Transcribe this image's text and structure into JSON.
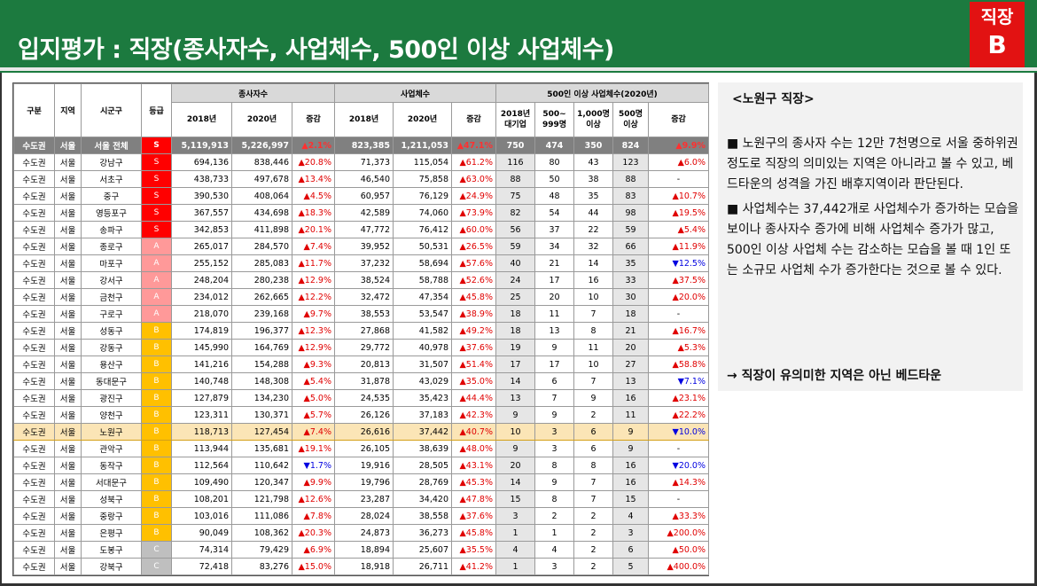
{
  "header": {
    "title": "입지평가 : 직장(종사자수, 사업체수, 500인 이상 사업체수)",
    "badge_line1": "직장",
    "badge_line2": "B"
  },
  "colors": {
    "title_bar": "#1c7a3f",
    "badge": "#e21212",
    "grade_S": "#ff0000",
    "grade_A": "#ff9999",
    "grade_B": "#ffc000",
    "grade_C": "#bfbfbf",
    "increase": "#e00000",
    "decrease": "#0000e0"
  },
  "table": {
    "headers": {
      "category": "구분",
      "region": "지역",
      "district": "시군구",
      "grade": "등급",
      "workers_group": "종사자수",
      "biz_group": "사업체수",
      "large_group": "500인 이상 사업체수(2020년)",
      "y2018": "2018년",
      "y2020": "2020년",
      "change": "증감",
      "large_2018": "2018년 대기업",
      "large_500_999": "500~ 999명",
      "large_1000": "1,000명 이상",
      "large_500": "500명 이상"
    },
    "rows": [
      {
        "cat": "수도권",
        "reg": "서울",
        "dist": "서울 전체",
        "grade": "S",
        "w18": "5,119,913",
        "w20": "5,226,997",
        "wchg": "▲2.1%",
        "b18": "823,385",
        "b20": "1,211,053",
        "bchg": "▲47.1%",
        "l18": "750",
        "l500": "474",
        "l1000": "350",
        "l500p": "824",
        "lchg": "▲9.9%",
        "total": true
      },
      {
        "cat": "수도권",
        "reg": "서울",
        "dist": "강남구",
        "grade": "S",
        "w18": "694,136",
        "w20": "838,446",
        "wchg": "▲20.8%",
        "b18": "71,373",
        "b20": "115,054",
        "bchg": "▲61.2%",
        "l18": "116",
        "l500": "80",
        "l1000": "43",
        "l500p": "123",
        "lchg": "▲6.0%"
      },
      {
        "cat": "수도권",
        "reg": "서울",
        "dist": "서초구",
        "grade": "S",
        "w18": "438,733",
        "w20": "497,678",
        "wchg": "▲13.4%",
        "b18": "46,540",
        "b20": "75,858",
        "bchg": "▲63.0%",
        "l18": "88",
        "l500": "50",
        "l1000": "38",
        "l500p": "88",
        "lchg": "-"
      },
      {
        "cat": "수도권",
        "reg": "서울",
        "dist": "중구",
        "grade": "S",
        "w18": "390,530",
        "w20": "408,064",
        "wchg": "▲4.5%",
        "b18": "60,957",
        "b20": "76,129",
        "bchg": "▲24.9%",
        "l18": "75",
        "l500": "48",
        "l1000": "35",
        "l500p": "83",
        "lchg": "▲10.7%"
      },
      {
        "cat": "수도권",
        "reg": "서울",
        "dist": "영등포구",
        "grade": "S",
        "w18": "367,557",
        "w20": "434,698",
        "wchg": "▲18.3%",
        "b18": "42,589",
        "b20": "74,060",
        "bchg": "▲73.9%",
        "l18": "82",
        "l500": "54",
        "l1000": "44",
        "l500p": "98",
        "lchg": "▲19.5%"
      },
      {
        "cat": "수도권",
        "reg": "서울",
        "dist": "송파구",
        "grade": "S",
        "w18": "342,853",
        "w20": "411,898",
        "wchg": "▲20.1%",
        "b18": "47,772",
        "b20": "76,412",
        "bchg": "▲60.0%",
        "l18": "56",
        "l500": "37",
        "l1000": "22",
        "l500p": "59",
        "lchg": "▲5.4%"
      },
      {
        "cat": "수도권",
        "reg": "서울",
        "dist": "종로구",
        "grade": "A",
        "w18": "265,017",
        "w20": "284,570",
        "wchg": "▲7.4%",
        "b18": "39,952",
        "b20": "50,531",
        "bchg": "▲26.5%",
        "l18": "59",
        "l500": "34",
        "l1000": "32",
        "l500p": "66",
        "lchg": "▲11.9%"
      },
      {
        "cat": "수도권",
        "reg": "서울",
        "dist": "마포구",
        "grade": "A",
        "w18": "255,152",
        "w20": "285,083",
        "wchg": "▲11.7%",
        "b18": "37,232",
        "b20": "58,694",
        "bchg": "▲57.6%",
        "l18": "40",
        "l500": "21",
        "l1000": "14",
        "l500p": "35",
        "lchg": "▼12.5%"
      },
      {
        "cat": "수도권",
        "reg": "서울",
        "dist": "강서구",
        "grade": "A",
        "w18": "248,204",
        "w20": "280,238",
        "wchg": "▲12.9%",
        "b18": "38,524",
        "b20": "58,788",
        "bchg": "▲52.6%",
        "l18": "24",
        "l500": "17",
        "l1000": "16",
        "l500p": "33",
        "lchg": "▲37.5%"
      },
      {
        "cat": "수도권",
        "reg": "서울",
        "dist": "금천구",
        "grade": "A",
        "w18": "234,012",
        "w20": "262,665",
        "wchg": "▲12.2%",
        "b18": "32,472",
        "b20": "47,354",
        "bchg": "▲45.8%",
        "l18": "25",
        "l500": "20",
        "l1000": "10",
        "l500p": "30",
        "lchg": "▲20.0%"
      },
      {
        "cat": "수도권",
        "reg": "서울",
        "dist": "구로구",
        "grade": "A",
        "w18": "218,070",
        "w20": "239,168",
        "wchg": "▲9.7%",
        "b18": "38,553",
        "b20": "53,547",
        "bchg": "▲38.9%",
        "l18": "18",
        "l500": "11",
        "l1000": "7",
        "l500p": "18",
        "lchg": "-"
      },
      {
        "cat": "수도권",
        "reg": "서울",
        "dist": "성동구",
        "grade": "B",
        "w18": "174,819",
        "w20": "196,377",
        "wchg": "▲12.3%",
        "b18": "27,868",
        "b20": "41,582",
        "bchg": "▲49.2%",
        "l18": "18",
        "l500": "13",
        "l1000": "8",
        "l500p": "21",
        "lchg": "▲16.7%"
      },
      {
        "cat": "수도권",
        "reg": "서울",
        "dist": "강동구",
        "grade": "B",
        "w18": "145,990",
        "w20": "164,769",
        "wchg": "▲12.9%",
        "b18": "29,772",
        "b20": "40,978",
        "bchg": "▲37.6%",
        "l18": "19",
        "l500": "9",
        "l1000": "11",
        "l500p": "20",
        "lchg": "▲5.3%"
      },
      {
        "cat": "수도권",
        "reg": "서울",
        "dist": "용산구",
        "grade": "B",
        "w18": "141,216",
        "w20": "154,288",
        "wchg": "▲9.3%",
        "b18": "20,813",
        "b20": "31,507",
        "bchg": "▲51.4%",
        "l18": "17",
        "l500": "17",
        "l1000": "10",
        "l500p": "27",
        "lchg": "▲58.8%"
      },
      {
        "cat": "수도권",
        "reg": "서울",
        "dist": "동대문구",
        "grade": "B",
        "w18": "140,748",
        "w20": "148,308",
        "wchg": "▲5.4%",
        "b18": "31,878",
        "b20": "43,029",
        "bchg": "▲35.0%",
        "l18": "14",
        "l500": "6",
        "l1000": "7",
        "l500p": "13",
        "lchg": "▼7.1%"
      },
      {
        "cat": "수도권",
        "reg": "서울",
        "dist": "광진구",
        "grade": "B",
        "w18": "127,879",
        "w20": "134,230",
        "wchg": "▲5.0%",
        "b18": "24,535",
        "b20": "35,423",
        "bchg": "▲44.4%",
        "l18": "13",
        "l500": "7",
        "l1000": "9",
        "l500p": "16",
        "lchg": "▲23.1%"
      },
      {
        "cat": "수도권",
        "reg": "서울",
        "dist": "양천구",
        "grade": "B",
        "w18": "123,311",
        "w20": "130,371",
        "wchg": "▲5.7%",
        "b18": "26,126",
        "b20": "37,183",
        "bchg": "▲42.3%",
        "l18": "9",
        "l500": "9",
        "l1000": "2",
        "l500p": "11",
        "lchg": "▲22.2%"
      },
      {
        "cat": "수도권",
        "reg": "서울",
        "dist": "노원구",
        "grade": "B",
        "w18": "118,713",
        "w20": "127,454",
        "wchg": "▲7.4%",
        "b18": "26,616",
        "b20": "37,442",
        "bchg": "▲40.7%",
        "l18": "10",
        "l500": "3",
        "l1000": "6",
        "l500p": "9",
        "lchg": "▼10.0%",
        "highlight": true
      },
      {
        "cat": "수도권",
        "reg": "서울",
        "dist": "관악구",
        "grade": "B",
        "w18": "113,944",
        "w20": "135,681",
        "wchg": "▲19.1%",
        "b18": "26,105",
        "b20": "38,639",
        "bchg": "▲48.0%",
        "l18": "9",
        "l500": "3",
        "l1000": "6",
        "l500p": "9",
        "lchg": "-"
      },
      {
        "cat": "수도권",
        "reg": "서울",
        "dist": "동작구",
        "grade": "B",
        "w18": "112,564",
        "w20": "110,642",
        "wchg": "▼1.7%",
        "b18": "19,916",
        "b20": "28,505",
        "bchg": "▲43.1%",
        "l18": "20",
        "l500": "8",
        "l1000": "8",
        "l500p": "16",
        "lchg": "▼20.0%"
      },
      {
        "cat": "수도권",
        "reg": "서울",
        "dist": "서대문구",
        "grade": "B",
        "w18": "109,490",
        "w20": "120,347",
        "wchg": "▲9.9%",
        "b18": "19,796",
        "b20": "28,769",
        "bchg": "▲45.3%",
        "l18": "14",
        "l500": "9",
        "l1000": "7",
        "l500p": "16",
        "lchg": "▲14.3%"
      },
      {
        "cat": "수도권",
        "reg": "서울",
        "dist": "성북구",
        "grade": "B",
        "w18": "108,201",
        "w20": "121,798",
        "wchg": "▲12.6%",
        "b18": "23,287",
        "b20": "34,420",
        "bchg": "▲47.8%",
        "l18": "15",
        "l500": "8",
        "l1000": "7",
        "l500p": "15",
        "lchg": "-"
      },
      {
        "cat": "수도권",
        "reg": "서울",
        "dist": "중랑구",
        "grade": "B",
        "w18": "103,016",
        "w20": "111,086",
        "wchg": "▲7.8%",
        "b18": "28,024",
        "b20": "38,558",
        "bchg": "▲37.6%",
        "l18": "3",
        "l500": "2",
        "l1000": "2",
        "l500p": "4",
        "lchg": "▲33.3%"
      },
      {
        "cat": "수도권",
        "reg": "서울",
        "dist": "은평구",
        "grade": "B",
        "w18": "90,049",
        "w20": "108,362",
        "wchg": "▲20.3%",
        "b18": "24,873",
        "b20": "36,273",
        "bchg": "▲45.8%",
        "l18": "1",
        "l500": "1",
        "l1000": "2",
        "l500p": "3",
        "lchg": "▲200.0%"
      },
      {
        "cat": "수도권",
        "reg": "서울",
        "dist": "도봉구",
        "grade": "C",
        "w18": "74,314",
        "w20": "79,429",
        "wchg": "▲6.9%",
        "b18": "18,894",
        "b20": "25,607",
        "bchg": "▲35.5%",
        "l18": "4",
        "l500": "4",
        "l1000": "2",
        "l500p": "6",
        "lchg": "▲50.0%"
      },
      {
        "cat": "수도권",
        "reg": "서울",
        "dist": "강북구",
        "grade": "C",
        "w18": "72,418",
        "w20": "83,276",
        "wchg": "▲15.0%",
        "b18": "18,918",
        "b20": "26,711",
        "bchg": "▲41.2%",
        "l18": "1",
        "l500": "3",
        "l1000": "2",
        "l500p": "5",
        "lchg": "▲400.0%"
      }
    ]
  },
  "panel": {
    "title": "<노원구 직장>",
    "para1": "■ 노원구의 종사자 수는 12만 7천명으로 서울 중하위권정도로 직장의 의미있는 지역은 아니라고 볼 수 있고, 베드타운의 성격을 가진 배후지역이라 판단된다.",
    "para2": "■ 사업체수는 37,442개로 사업체수가 증가하는 모습을 보이나 종사자수 증가에 비해 사업체수 증가가 많고, 500인 이상 사업체 수는 감소하는 모습을 볼 때 1인 또는 소규모 사업체 수가 증가한다는 것으로 볼 수 있다.",
    "conclusion": "→ 직장이 유의미한 지역은 아닌 베드타운"
  }
}
